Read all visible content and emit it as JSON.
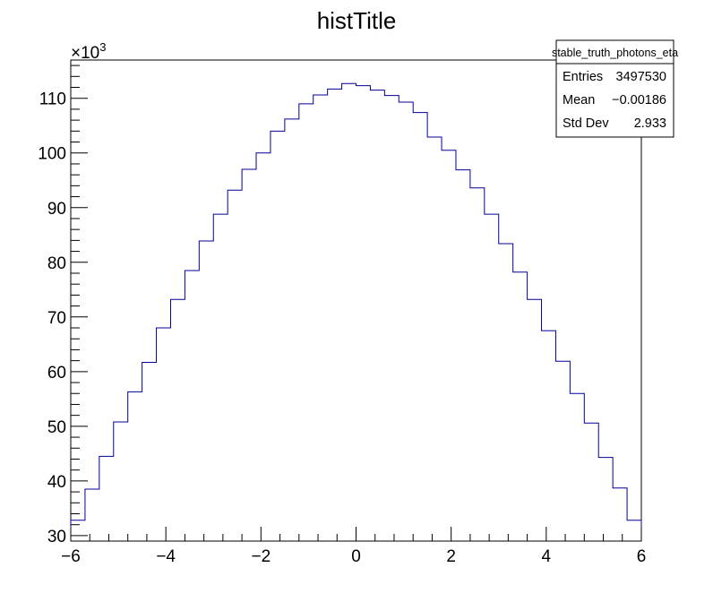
{
  "chart_data": {
    "type": "histogram",
    "title": "histTitle",
    "xlabel": "",
    "ylabel": "",
    "xlim": [
      -6,
      6
    ],
    "ylim": [
      29000,
      117000
    ],
    "y_multiplier_label": "×10",
    "y_multiplier_exp": "3",
    "x_ticks": [
      -6,
      -4,
      -2,
      0,
      2,
      4,
      6
    ],
    "x_tick_labels": [
      "−6",
      "−4",
      "−2",
      "0",
      "2",
      "4",
      "6"
    ],
    "y_ticks": [
      30000,
      40000,
      50000,
      60000,
      70000,
      80000,
      90000,
      100000,
      110000
    ],
    "y_tick_labels": [
      "30",
      "40",
      "50",
      "60",
      "70",
      "80",
      "90",
      "100",
      "110"
    ],
    "bin_edges": [
      -6.0,
      -5.7,
      -5.4,
      -5.1,
      -4.8,
      -4.5,
      -4.2,
      -3.9,
      -3.6,
      -3.3,
      -3.0,
      -2.7,
      -2.4,
      -2.1,
      -1.8,
      -1.5,
      -1.2,
      -0.9,
      -0.6,
      -0.3,
      0.0,
      0.3,
      0.6,
      0.9,
      1.2,
      1.5,
      1.8,
      2.1,
      2.4,
      2.7,
      3.0,
      3.3,
      3.6,
      3.9,
      4.2,
      4.5,
      4.8,
      5.1,
      5.4,
      5.7,
      6.0
    ],
    "values": [
      32800,
      38500,
      44500,
      50800,
      56300,
      61700,
      68000,
      73200,
      78500,
      83900,
      88800,
      93200,
      97000,
      100000,
      104000,
      106200,
      109000,
      110600,
      111700,
      112700,
      112300,
      111500,
      110500,
      109300,
      107400,
      102900,
      100500,
      96900,
      93600,
      88800,
      83400,
      78200,
      73200,
      67500,
      61900,
      56000,
      50600,
      44300,
      38700,
      32800
    ],
    "line_color": "#000099",
    "stats_box": {
      "name": "stable_truth_photons_eta",
      "rows": [
        {
          "label": "Entries",
          "value": "3497530"
        },
        {
          "label": "Mean",
          "value": "−0.00186"
        },
        {
          "label": "Std Dev",
          "value": "2.933"
        }
      ]
    }
  }
}
